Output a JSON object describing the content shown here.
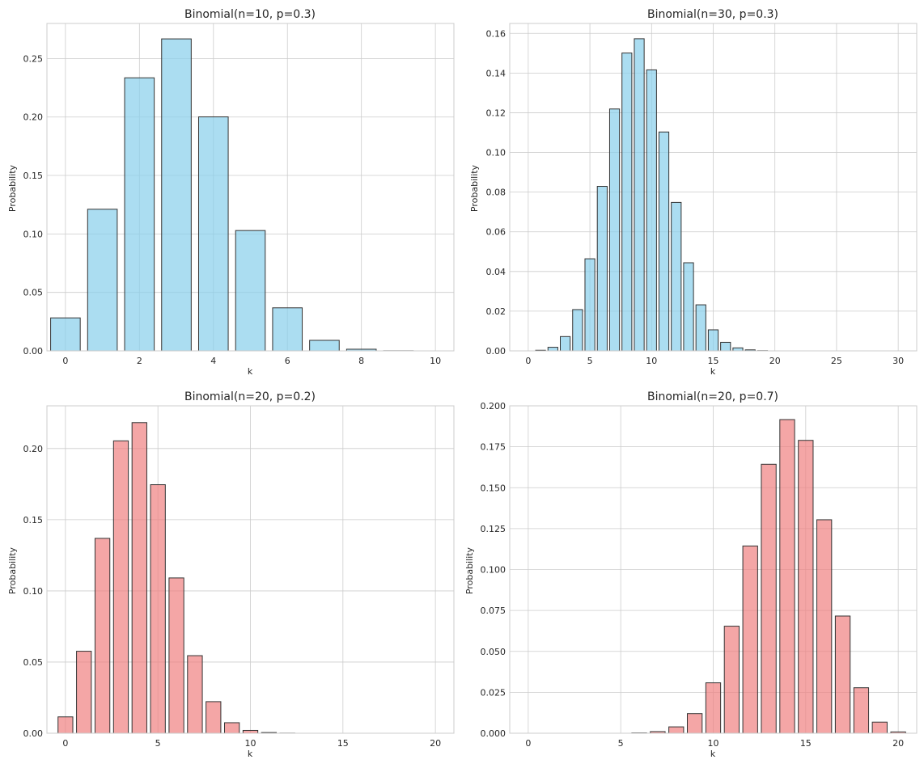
{
  "chart_data": [
    {
      "type": "bar",
      "title": "Binomial(n=10, p=0.3)",
      "xlabel": "k",
      "ylabel": "Probability",
      "color": "#87CEEB",
      "edge_color": "#333333",
      "grid": true,
      "xlim": [
        -0.5,
        10.5
      ],
      "ylim": [
        0,
        0.28
      ],
      "xticks": [
        0,
        2,
        4,
        6,
        8,
        10
      ],
      "xtick_labels": [
        "0",
        "2",
        "4",
        "6",
        "8",
        "10"
      ],
      "yticks": [
        0,
        0.05,
        0.1,
        0.15,
        0.2,
        0.25
      ],
      "ytick_labels": [
        "0.00",
        "0.05",
        "0.10",
        "0.15",
        "0.20",
        "0.25"
      ],
      "x": [
        0,
        1,
        2,
        3,
        4,
        5,
        6,
        7,
        8,
        9,
        10
      ],
      "values": [
        0.0282,
        0.1211,
        0.2335,
        0.2668,
        0.2001,
        0.1029,
        0.0368,
        0.009,
        0.0014,
        0.0001,
        0.0
      ]
    },
    {
      "type": "bar",
      "title": "Binomial(n=30, p=0.3)",
      "xlabel": "k",
      "ylabel": "Probability",
      "color": "#87CEEB",
      "edge_color": "#333333",
      "grid": true,
      "xlim": [
        -1.5,
        31.5
      ],
      "ylim": [
        0,
        0.165
      ],
      "xticks": [
        0,
        5,
        10,
        15,
        20,
        25,
        30
      ],
      "xtick_labels": [
        "0",
        "5",
        "10",
        "15",
        "20",
        "25",
        "30"
      ],
      "yticks": [
        0,
        0.02,
        0.04,
        0.06,
        0.08,
        0.1,
        0.12,
        0.14,
        0.16
      ],
      "ytick_labels": [
        "0.00",
        "0.02",
        "0.04",
        "0.06",
        "0.08",
        "0.10",
        "0.12",
        "0.14",
        "0.16"
      ],
      "x": [
        0,
        1,
        2,
        3,
        4,
        5,
        6,
        7,
        8,
        9,
        10,
        11,
        12,
        13,
        14,
        15,
        16,
        17,
        18,
        19,
        20,
        21,
        22,
        23,
        24,
        25,
        26,
        27,
        28,
        29,
        30
      ],
      "values": [
        0.0,
        0.0003,
        0.0018,
        0.0072,
        0.0208,
        0.0464,
        0.0829,
        0.1219,
        0.1501,
        0.1573,
        0.1416,
        0.1103,
        0.0748,
        0.0444,
        0.0232,
        0.0106,
        0.0043,
        0.0015,
        0.0005,
        0.0001,
        0.0,
        0,
        0,
        0,
        0,
        0,
        0,
        0,
        0,
        0,
        0
      ]
    },
    {
      "type": "bar",
      "title": "Binomial(n=20, p=0.2)",
      "xlabel": "k",
      "ylabel": "Probability",
      "color": "#F08080",
      "edge_color": "#333333",
      "grid": true,
      "xlim": [
        -1.0,
        21.0
      ],
      "ylim": [
        0,
        0.23
      ],
      "xticks": [
        0,
        5,
        10,
        15,
        20
      ],
      "xtick_labels": [
        "0",
        "5",
        "10",
        "15",
        "20"
      ],
      "yticks": [
        0,
        0.05,
        0.1,
        0.15,
        0.2
      ],
      "ytick_labels": [
        "0.00",
        "0.05",
        "0.10",
        "0.15",
        "0.20"
      ],
      "x": [
        0,
        1,
        2,
        3,
        4,
        5,
        6,
        7,
        8,
        9,
        10,
        11,
        12,
        13,
        14,
        15,
        16,
        17,
        18,
        19,
        20
      ],
      "values": [
        0.0115,
        0.0576,
        0.1369,
        0.2054,
        0.2182,
        0.1746,
        0.1091,
        0.0545,
        0.0222,
        0.0074,
        0.002,
        0.0005,
        0.0001,
        0,
        0,
        0,
        0,
        0,
        0,
        0,
        0
      ]
    },
    {
      "type": "bar",
      "title": "Binomial(n=20, p=0.7)",
      "xlabel": "k",
      "ylabel": "Probability",
      "color": "#F08080",
      "edge_color": "#333333",
      "grid": true,
      "xlim": [
        -1.0,
        21.0
      ],
      "ylim": [
        0,
        0.2
      ],
      "xticks": [
        0,
        5,
        10,
        15,
        20
      ],
      "xtick_labels": [
        "0",
        "5",
        "10",
        "15",
        "20"
      ],
      "yticks": [
        0,
        0.025,
        0.05,
        0.075,
        0.1,
        0.125,
        0.15,
        0.175,
        0.2
      ],
      "ytick_labels": [
        "0.000",
        "0.025",
        "0.050",
        "0.075",
        "0.100",
        "0.125",
        "0.150",
        "0.175",
        "0.200"
      ],
      "x": [
        0,
        1,
        2,
        3,
        4,
        5,
        6,
        7,
        8,
        9,
        10,
        11,
        12,
        13,
        14,
        15,
        16,
        17,
        18,
        19,
        20
      ],
      "values": [
        0,
        0,
        0,
        0,
        0,
        0,
        0.0002,
        0.001,
        0.0039,
        0.012,
        0.0308,
        0.0654,
        0.1144,
        0.1643,
        0.1916,
        0.1789,
        0.1304,
        0.0716,
        0.0278,
        0.0068,
        0.0008
      ]
    }
  ]
}
